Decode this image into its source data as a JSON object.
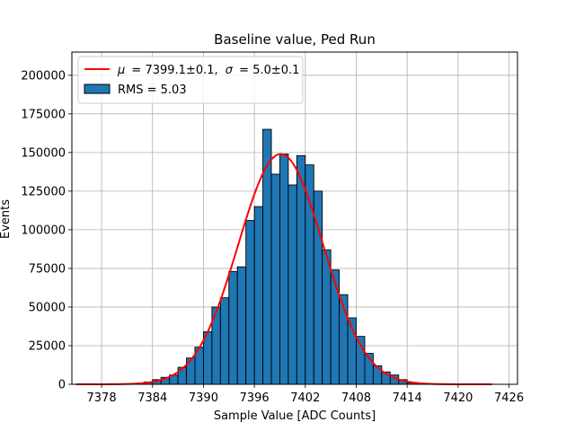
{
  "chart_data": {
    "type": "bar",
    "title": "Baseline value, Ped Run",
    "xlabel": "Sample Value [ADC Counts]",
    "ylabel": "Events",
    "xlim": [
      7374.5,
      7427
    ],
    "ylim": [
      0,
      215000
    ],
    "xticks": [
      "7378",
      "7384",
      "7390",
      "7396",
      "7402",
      "7408",
      "7414",
      "7420",
      "7426"
    ],
    "yticks": [
      "0",
      "25000",
      "50000",
      "75000",
      "100000",
      "125000",
      "150000",
      "175000",
      "200000"
    ],
    "grid": true,
    "legend_position": "top-left",
    "histogram": {
      "name": "RMS = 5.03",
      "color": "#1f77b4",
      "edge_color": "#000000",
      "bin_width": 1,
      "bin_starts": [
        7383,
        7384,
        7385,
        7386,
        7387,
        7388,
        7389,
        7390,
        7391,
        7392,
        7393,
        7394,
        7395,
        7396,
        7397,
        7398,
        7399,
        7400,
        7401,
        7402,
        7403,
        7404,
        7405,
        7406,
        7407,
        7408,
        7409,
        7410,
        7411,
        7412,
        7413,
        7414
      ],
      "counts": [
        1500,
        3000,
        4500,
        6000,
        11000,
        17000,
        24000,
        34000,
        50000,
        56000,
        73000,
        76000,
        106000,
        115000,
        165000,
        136000,
        149000,
        129000,
        148000,
        142000,
        125000,
        87000,
        74000,
        58000,
        43000,
        31000,
        20000,
        12000,
        8000,
        6000,
        3000,
        1000
      ]
    },
    "fit": {
      "name": "$\\mu = 7399.1 \\pm 0.1$, $\\sigma = 5.0 \\pm 0.1$",
      "color": "#ff0000",
      "mu": 7399.1,
      "sigma": 5.0,
      "amplitude": 149000,
      "x_range": [
        7375,
        7424
      ]
    },
    "legend": {
      "fit_label_text": "= 7399.1±0.1,",
      "fit_sigma_text": "= 5.0±0.1",
      "fit_mu_symbol": "μ",
      "fit_sigma_symbol": "σ",
      "hist_label": "RMS = 5.03"
    }
  }
}
